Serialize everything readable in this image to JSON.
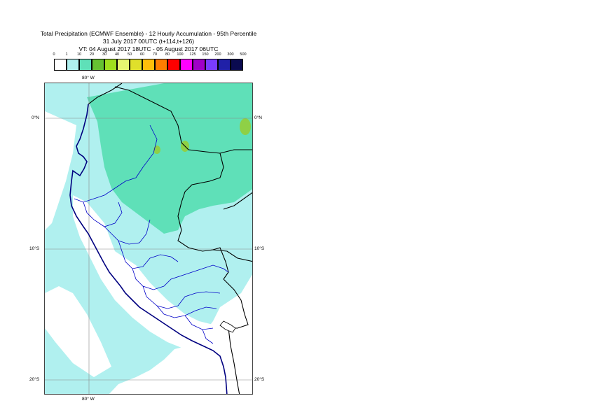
{
  "header": {
    "title_line1": "Total Precipitation (ECMWF Ensemble) - 12 Hourly Accumulation - 95th Percentile",
    "title_line2": "31 July 2017 00UTC (t+114,t+126)",
    "title_line3": "VT: 04 August 2017 18UTC - 05 August 2017 06UTC"
  },
  "legend": {
    "labels": [
      "0",
      "1",
      "10",
      "20",
      "30",
      "40",
      "50",
      "60",
      "70",
      "80",
      "100",
      "125",
      "150",
      "200",
      "300",
      "500"
    ],
    "colors": [
      "#ffffff",
      "#b0f0ef",
      "#5fe0b8",
      "#66c231",
      "#a0e01e",
      "#e6f571",
      "#e0e02b",
      "#ffbe0a",
      "#ff7d00",
      "#ff0000",
      "#ff00ff",
      "#a000c8",
      "#7a3cff",
      "#2020a8",
      "#0a0a50"
    ]
  },
  "map": {
    "lon_labels": {
      "top": "80° W",
      "bottom": "80° W"
    },
    "lat_labels": {
      "n0_left": "0°N",
      "n0_right": "0°N",
      "s10_left": "10°S",
      "s10_right": "10°S",
      "s20_left": "20°S",
      "s20_right": "20°S"
    },
    "colors": {
      "light_cyan": "#b0f0ef",
      "green_cyan": "#5fe0b8",
      "yellow_green": "#8fd046",
      "coast": "#000080",
      "border": "#000000",
      "regions": "#0000c8",
      "grid": "#888888"
    }
  }
}
